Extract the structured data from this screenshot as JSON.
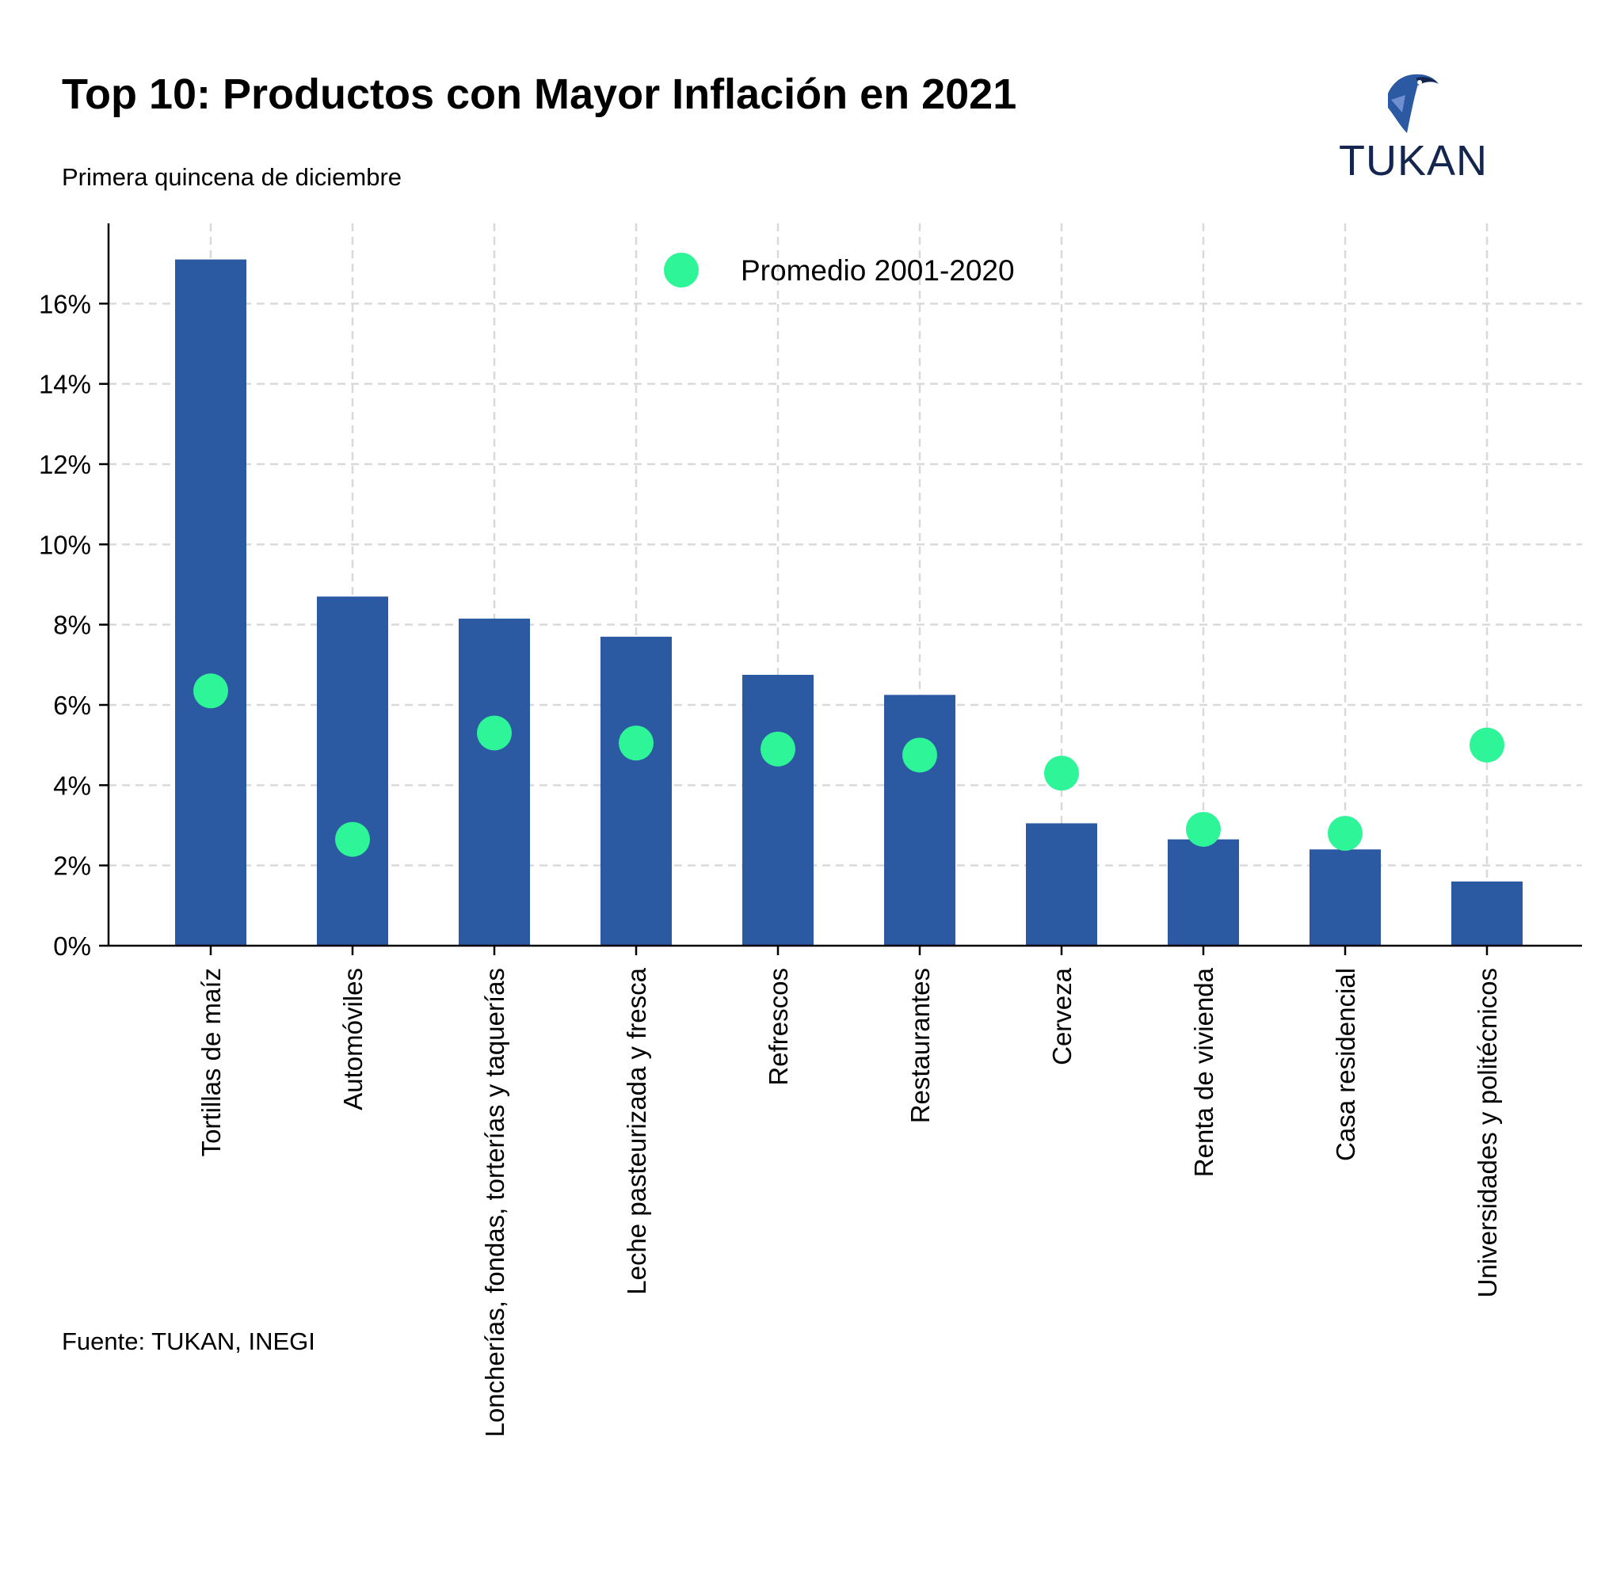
{
  "header": {
    "title": "Top 10: Productos con Mayor Inflación en 2021",
    "subtitle": "Primera quincena de diciembre"
  },
  "footer": {
    "source": "Fuente: TUKAN, INEGI"
  },
  "logo": {
    "text": "TUKAN",
    "icon": "toucan-icon"
  },
  "colors": {
    "bar": "#2b5aa3",
    "marker": "#2ef598",
    "grid": "#d9d9d9",
    "axis": "#000000",
    "logo_text": "#14264d"
  },
  "chart_data": {
    "type": "bar",
    "categories": [
      "Tortillas de maíz",
      "Automóviles",
      "Loncherías, fondas, torterías y taquerías",
      "Leche pasteurizada y fresca",
      "Refrescos",
      "Restaurantes",
      "Cerveza",
      "Renta de vivienda",
      "Casa residencial",
      "Universidades y politécnicos"
    ],
    "series": [
      {
        "type": "bar",
        "values": [
          17.1,
          8.7,
          8.15,
          7.7,
          6.75,
          6.25,
          3.05,
          2.65,
          2.4,
          1.6
        ]
      },
      {
        "name": "Promedio 2001-2020",
        "type": "scatter",
        "values": [
          6.35,
          2.65,
          5.3,
          5.05,
          4.9,
          4.75,
          4.3,
          2.9,
          2.8,
          5.0
        ]
      }
    ],
    "yticks": [
      "0%",
      "2%",
      "4%",
      "6%",
      "8%",
      "10%",
      "12%",
      "14%",
      "16%"
    ],
    "ylim": [
      0,
      18
    ],
    "grid": true,
    "legend": "top-center"
  }
}
